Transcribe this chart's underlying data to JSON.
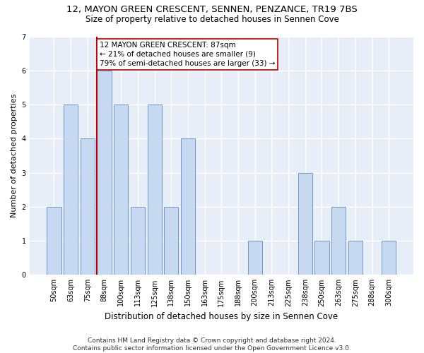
{
  "title": "12, MAYON GREEN CRESCENT, SENNEN, PENZANCE, TR19 7BS",
  "subtitle": "Size of property relative to detached houses in Sennen Cove",
  "xlabel": "Distribution of detached houses by size in Sennen Cove",
  "ylabel": "Number of detached properties",
  "categories": [
    "50sqm",
    "63sqm",
    "75sqm",
    "88sqm",
    "100sqm",
    "113sqm",
    "125sqm",
    "138sqm",
    "150sqm",
    "163sqm",
    "175sqm",
    "188sqm",
    "200sqm",
    "213sqm",
    "225sqm",
    "238sqm",
    "250sqm",
    "263sqm",
    "275sqm",
    "288sqm",
    "300sqm"
  ],
  "values": [
    2,
    5,
    4,
    6,
    5,
    2,
    5,
    2,
    4,
    0,
    0,
    0,
    1,
    0,
    0,
    3,
    1,
    2,
    1,
    0,
    1
  ],
  "bar_color": "#c6d9f0",
  "bar_edge_color": "#5b8fc9",
  "vline_color": "#c00000",
  "vline_x_index": 3,
  "annotation_text": "12 MAYON GREEN CRESCENT: 87sqm\n← 21% of detached houses are smaller (9)\n79% of semi-detached houses are larger (33) →",
  "annotation_box_facecolor": "white",
  "annotation_box_edgecolor": "#c00000",
  "ylim": [
    0,
    7
  ],
  "yticks": [
    0,
    1,
    2,
    3,
    4,
    5,
    6,
    7
  ],
  "footer": "Contains HM Land Registry data © Crown copyright and database right 2024.\nContains public sector information licensed under the Open Government Licence v3.0.",
  "bg_color": "#e8eef8",
  "grid_color": "#ffffff",
  "title_fontsize": 9.5,
  "subtitle_fontsize": 8.5,
  "tick_fontsize": 7,
  "ylabel_fontsize": 8,
  "xlabel_fontsize": 8.5,
  "footer_fontsize": 6.5,
  "annotation_fontsize": 7.5
}
